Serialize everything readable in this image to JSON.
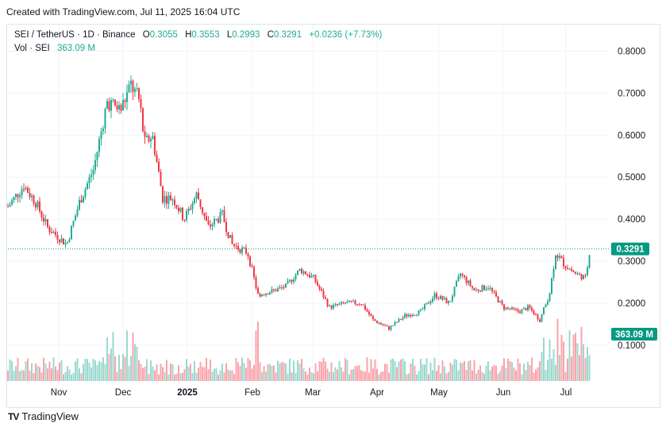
{
  "header": {
    "created_text": "Created with TradingView.com, Jul 11, 2025 16:04 UTC"
  },
  "legend": {
    "symbol": "SEI / TetherUS · 1D · Binance",
    "o_label": "O",
    "o_value": "0.3055",
    "h_label": "H",
    "h_value": "0.3553",
    "l_label": "L",
    "l_value": "0.2993",
    "c_label": "C",
    "c_value": "0.3291",
    "change": "+0.0236 (+7.73%)",
    "vol_label": "Vol · SEI",
    "vol_value": "363.09 M"
  },
  "footer": {
    "logo_text": "TV",
    "brand": "TradingView"
  },
  "colors": {
    "up": "#22ab94",
    "down": "#f23645",
    "accent": "#089981",
    "grid": "#f0f3fa"
  },
  "chart_data": {
    "type": "candlestick",
    "symbol": "SEI/USDT",
    "interval": "1D",
    "ylim": [
      0.1,
      0.85
    ],
    "y_ticks": [
      "0.8000",
      "0.7000",
      "0.6000",
      "0.5000",
      "0.4000",
      "0.3000",
      "0.2000",
      "0.1000"
    ],
    "x_ticks": [
      "Nov",
      "Dec",
      "2025",
      "Feb",
      "Mar",
      "Apr",
      "May",
      "Jun",
      "Jul"
    ],
    "last_price_label": "0.3291",
    "last_price": 0.3291,
    "volume_label": "363.09 M",
    "key_points": [
      {
        "month": "Oct",
        "close": 0.43
      },
      {
        "month": "Nov",
        "close": 0.36
      },
      {
        "month": "Dec",
        "close": 0.7
      },
      {
        "month": "Dec-mid",
        "close": 0.72
      },
      {
        "month": "2025",
        "close": 0.45
      },
      {
        "month": "Jan",
        "close": 0.4
      },
      {
        "month": "Feb",
        "close": 0.22
      },
      {
        "month": "Mar",
        "close": 0.28
      },
      {
        "month": "Mar-late",
        "close": 0.19
      },
      {
        "month": "Apr",
        "close": 0.15
      },
      {
        "month": "May",
        "close": 0.27
      },
      {
        "month": "Jun",
        "close": 0.19
      },
      {
        "month": "Jun-late",
        "close": 0.17
      },
      {
        "month": "Jul",
        "close": 0.33
      },
      {
        "month": "Jul-11",
        "close": 0.3291
      }
    ]
  }
}
